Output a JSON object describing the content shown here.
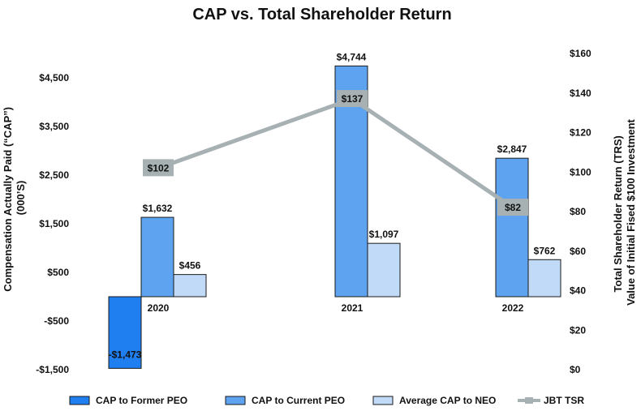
{
  "chart_data": {
    "type": "bar",
    "title": "CAP vs. Total Shareholder Return",
    "categories": [
      "2020",
      "2021",
      "2022"
    ],
    "ylabel_left": [
      "Compensation Actually Paid (“CAP”)",
      "(000’S)"
    ],
    "ylabel_right": [
      "Total Shareholder Return (TRS)",
      "Value of Initial Fised $100 Investment"
    ],
    "left_axis": {
      "range": [
        -1500,
        5000
      ],
      "ticks": [
        -1500,
        -500,
        500,
        1500,
        2500,
        3500,
        4500
      ],
      "tick_labels": [
        "-$1,500",
        "-$500",
        "$500",
        "$1,500",
        "$2,500",
        "$3,500",
        "$4,500"
      ]
    },
    "right_axis": {
      "range": [
        0,
        160
      ],
      "ticks": [
        0,
        20,
        40,
        60,
        80,
        100,
        120,
        140,
        160
      ],
      "tick_labels": [
        "$0",
        "$20",
        "$40",
        "$60",
        "$80",
        "$100",
        "$120",
        "$140",
        "$160"
      ]
    },
    "series": [
      {
        "name": "CAP to Former PEO",
        "axis": "left",
        "color": "#1f7ff0",
        "values": [
          -1473,
          null,
          null
        ],
        "labels": [
          "-$1,473",
          "",
          ""
        ]
      },
      {
        "name": "CAP to Current PEO",
        "axis": "left",
        "color": "#5ea3ef",
        "values": [
          1632,
          4744,
          2847
        ],
        "labels": [
          "$1,632",
          "$4,744",
          "$2,847"
        ]
      },
      {
        "name": "Average CAP to NEO",
        "axis": "left",
        "color": "#c0daf7",
        "values": [
          456,
          1097,
          762
        ],
        "labels": [
          "$456",
          "$1,097",
          "$762"
        ]
      },
      {
        "name": "JBT TSR",
        "axis": "right",
        "type": "line",
        "color": "#a7b1b3",
        "values": [
          102,
          137,
          82
        ],
        "labels": [
          "$102",
          "$137",
          "$82"
        ]
      }
    ],
    "legend_position": "bottom"
  }
}
